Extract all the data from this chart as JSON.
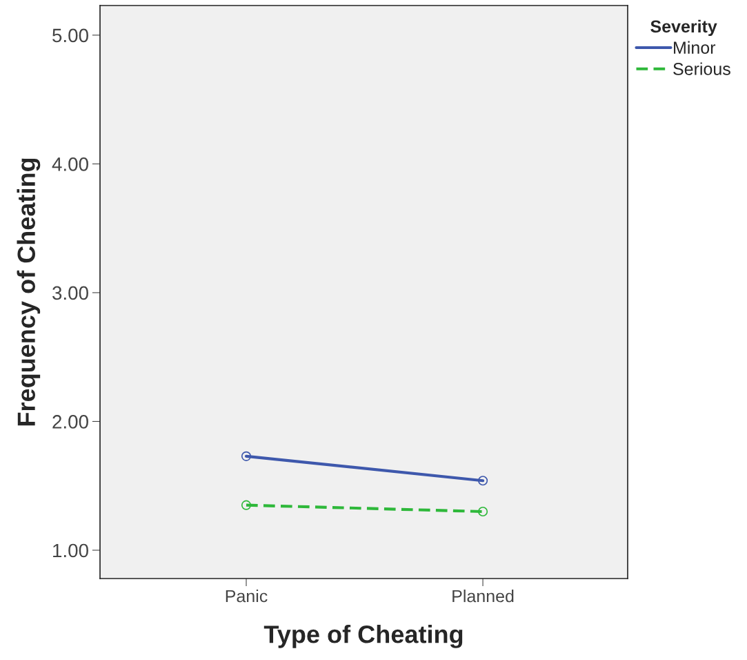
{
  "chart_data": {
    "type": "line",
    "xlabel": "Type of Cheating",
    "ylabel": "Frequency of Cheating",
    "legend_title": "Severity",
    "categories": [
      "Panic",
      "Planned"
    ],
    "series": [
      {
        "name": "Minor",
        "color": "#3e58ac",
        "values": [
          1.73,
          1.54
        ],
        "line_style": "solid"
      },
      {
        "name": "Serious",
        "color": "#2eb83a",
        "values": [
          1.35,
          1.3
        ],
        "line_style": "dashed"
      }
    ],
    "ylim": [
      0.78,
      5.23
    ],
    "yticks": [
      {
        "value": 1,
        "label": "1.00"
      },
      {
        "value": 2,
        "label": "2.00"
      },
      {
        "value": 3,
        "label": "3.00"
      },
      {
        "value": 4,
        "label": "4.00"
      },
      {
        "value": 5,
        "label": "5.00"
      }
    ],
    "marker": "circle",
    "grid": false,
    "legend": "top right"
  }
}
